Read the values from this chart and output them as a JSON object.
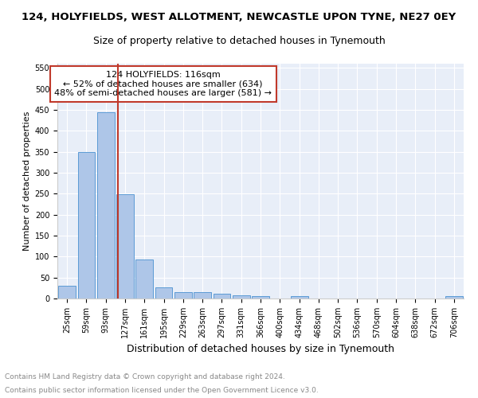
{
  "title1": "124, HOLYFIELDS, WEST ALLOTMENT, NEWCASTLE UPON TYNE, NE27 0EY",
  "title2": "Size of property relative to detached houses in Tynemouth",
  "xlabel": "Distribution of detached houses by size in Tynemouth",
  "ylabel": "Number of detached properties",
  "categories": [
    "25sqm",
    "59sqm",
    "93sqm",
    "127sqm",
    "161sqm",
    "195sqm",
    "229sqm",
    "263sqm",
    "297sqm",
    "331sqm",
    "366sqm",
    "400sqm",
    "434sqm",
    "468sqm",
    "502sqm",
    "536sqm",
    "570sqm",
    "604sqm",
    "638sqm",
    "672sqm",
    "706sqm"
  ],
  "values": [
    30,
    350,
    445,
    248,
    93,
    27,
    16,
    15,
    11,
    7,
    5,
    0,
    5,
    0,
    0,
    0,
    0,
    0,
    0,
    0,
    5
  ],
  "bar_color": "#aec6e8",
  "bar_edge_color": "#5b9bd5",
  "vline_x": 2.62,
  "vline_color": "#c0392b",
  "annotation_text": "124 HOLYFIELDS: 116sqm\n← 52% of detached houses are smaller (634)\n48% of semi-detached houses are larger (581) →",
  "annotation_box_color": "#ffffff",
  "annotation_box_edge": "#c0392b",
  "ylim": [
    0,
    560
  ],
  "yticks": [
    0,
    50,
    100,
    150,
    200,
    250,
    300,
    350,
    400,
    450,
    500,
    550
  ],
  "footnote1": "Contains HM Land Registry data © Crown copyright and database right 2024.",
  "footnote2": "Contains public sector information licensed under the Open Government Licence v3.0.",
  "bg_color": "#e8eef8",
  "grid_color": "#ffffff",
  "title1_fontsize": 9.5,
  "title2_fontsize": 9,
  "xlabel_fontsize": 9,
  "ylabel_fontsize": 8,
  "tick_fontsize": 7,
  "annotation_fontsize": 8,
  "footnote_fontsize": 6.5,
  "footnote_color": "#888888"
}
